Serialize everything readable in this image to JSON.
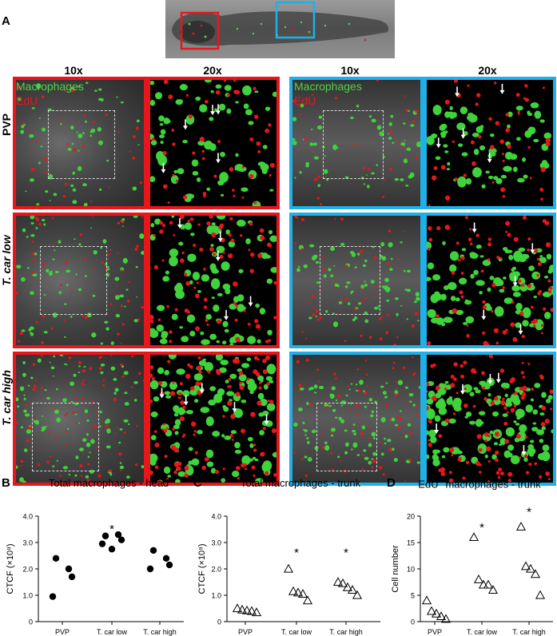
{
  "panelA": {
    "letter": "A",
    "mag_left_10x": "10x",
    "mag_left_20x": "20x",
    "mag_right_10x": "10x",
    "mag_right_20x": "20x",
    "legend_macrophages": "Macrophages",
    "legend_edu": "EdU",
    "rows": [
      "PVP",
      "T. car low",
      "T. car high"
    ],
    "colors": {
      "head_box": "#e8161b",
      "trunk_box": "#1fb0e8",
      "macrophage": "#4fd14a",
      "edu": "#e8161b"
    }
  },
  "charts": [
    {
      "letter": "B",
      "title": "Total macrophages - head",
      "ylabel": "CTCF (×10⁹)",
      "chart_data": {
        "type": "scatter",
        "marker": "filled-circle",
        "categories": [
          "PVP",
          "T. car low",
          "T. car high"
        ],
        "yticks": [
          "0",
          "1.0",
          "2.0",
          "3.0",
          "4.0"
        ],
        "ylim": [
          0,
          4
        ],
        "groups": [
          [
            2.4,
            2.0,
            1.7,
            0.95
          ],
          [
            3.25,
            3.3,
            3.1,
            2.95,
            2.75
          ],
          [
            2.7,
            2.4,
            2.15,
            2.0
          ]
        ],
        "annotations": [
          {
            "category": "T. car low",
            "text": "*",
            "y": 3.55
          }
        ]
      }
    },
    {
      "letter": "C",
      "title": "Total macrophages - trunk",
      "ylabel": "CTCF (×10⁹)",
      "chart_data": {
        "type": "scatter",
        "marker": "open-triangle",
        "categories": [
          "PVP",
          "T. car low",
          "T. car high"
        ],
        "yticks": [
          "0",
          "1.0",
          "2.0",
          "3.0",
          "4.0"
        ],
        "ylim": [
          0,
          4
        ],
        "groups": [
          [
            0.5,
            0.45,
            0.42,
            0.4,
            0.35
          ],
          [
            2.0,
            1.15,
            1.1,
            1.05,
            0.8
          ],
          [
            1.5,
            1.45,
            1.3,
            1.2,
            1.0
          ]
        ],
        "annotations": [
          {
            "category": "T. car low",
            "text": "*",
            "y": 2.65
          },
          {
            "category": "T. car high",
            "text": "*",
            "y": 2.65
          }
        ]
      }
    },
    {
      "letter": "D",
      "title_pre": "EdU",
      "title_sup": "+",
      "title_post": " macrophages - trunk",
      "ylabel": "Cell number",
      "chart_data": {
        "type": "scatter",
        "marker": "open-triangle",
        "categories": [
          "PVP",
          "T. car low",
          "T. car high"
        ],
        "yticks": [
          "0",
          "5",
          "10",
          "15",
          "20"
        ],
        "ylim": [
          0,
          20
        ],
        "groups": [
          [
            4,
            2,
            1.5,
            1,
            0.5
          ],
          [
            16,
            8,
            7,
            7,
            6
          ],
          [
            18,
            10.5,
            10,
            9,
            5
          ]
        ],
        "annotations": [
          {
            "category": "T. car low",
            "text": "*",
            "y": 18
          },
          {
            "category": "T. car high",
            "text": "*",
            "y": 21
          }
        ]
      }
    }
  ]
}
